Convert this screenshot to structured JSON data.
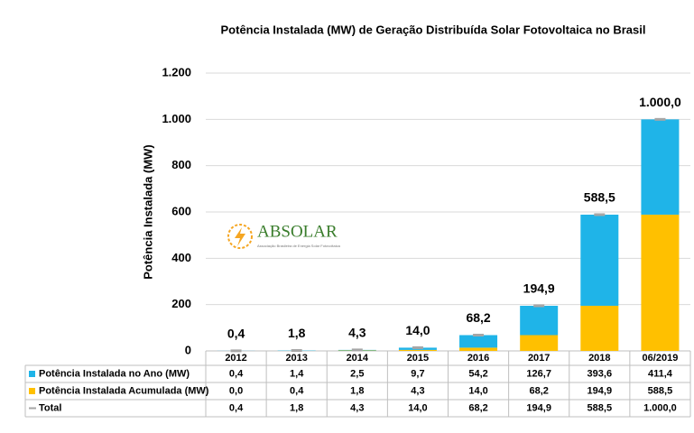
{
  "chart_data": {
    "type": "stacked_bar",
    "title": "Potência Instalada (MW) de Geração Distribuída Solar Fotovoltaica no Brasil",
    "y_label": "Potência Instalada (MW)",
    "categories": [
      "2012",
      "2013",
      "2014",
      "2015",
      "2016",
      "2017",
      "2018",
      "06/2019"
    ],
    "series": [
      {
        "name": "Potência Instalada no Ano (MW)",
        "color": "#1fb4e8",
        "values": [
          0.4,
          1.4,
          2.5,
          9.7,
          54.2,
          126.7,
          393.6,
          411.4
        ],
        "value_labels": [
          "0,4",
          "1,4",
          "2,5",
          "9,7",
          "54,2",
          "126,7",
          "393,6",
          "411,4"
        ]
      },
      {
        "name": "Potência Instalada Acumulada (MW)",
        "color": "#ffc000",
        "values": [
          0.0,
          0.4,
          1.8,
          4.3,
          14.0,
          68.2,
          194.9,
          588.5
        ],
        "value_labels": [
          "0,0",
          "0,4",
          "1,8",
          "4,3",
          "14,0",
          "68,2",
          "194,9",
          "588,5"
        ]
      },
      {
        "name": "Total",
        "color": "#a6a6a6",
        "values": [
          0.4,
          1.8,
          4.3,
          14.0,
          68.2,
          194.9,
          588.5,
          1000.0
        ],
        "value_labels": [
          "0,4",
          "1,8",
          "4,3",
          "14,0",
          "68,2",
          "194,9",
          "588,5",
          "1.000,0"
        ]
      }
    ],
    "ylim": [
      0,
      1200
    ],
    "yticks": [
      0,
      200,
      400,
      600,
      800,
      {
        "value": 1000,
        "label": "1.000"
      },
      {
        "value": 1200,
        "label": "1.200"
      }
    ],
    "grid": true,
    "logo": {
      "name": "ABSOLAR",
      "tagline": "Associação Brasileira de Energia Solar Fotovoltaica"
    }
  }
}
